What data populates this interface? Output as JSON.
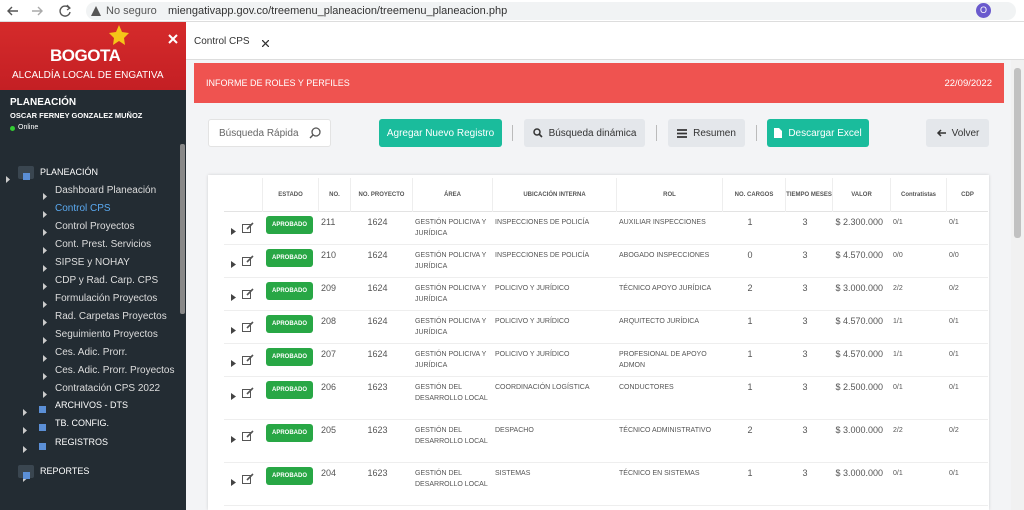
{
  "browser": {
    "security": "No seguro",
    "url": "miengativapp.gov.co/treemenu_planeacion/treemenu_planeacion.php",
    "profile": "O"
  },
  "sidebar": {
    "logo": "BOGOTA",
    "office": "ALCALDÍA LOCAL DE ENGATIVA",
    "section": "PLANEACIÓN",
    "user": "OSCAR FERNEY GONZALEZ MUÑOZ",
    "status": "Online",
    "menu": [
      {
        "label": "PLANEACIÓN",
        "children": [
          "Dashboard Planeación",
          "Control CPS",
          "Control Proyectos",
          "Cont. Prest. Servicios",
          "SIPSE y NOHAY",
          "CDP y Rad. Carp. CPS",
          "Formulación Proyectos",
          "Rad. Carpetas Proyectos",
          "Seguimiento Proyectos",
          "Ces. Adic. Prorr.",
          "Ces. Adic. Prorr. Proyectos",
          "Contratación CPS 2022"
        ]
      },
      {
        "label": "ARCHIVOS - DTS"
      },
      {
        "label": "TB. CONFIG."
      },
      {
        "label": "REGISTROS"
      },
      {
        "label": "REPORTES"
      }
    ]
  },
  "tab": "Control CPS",
  "header": {
    "title": "INFORME DE ROLES Y PERFILES",
    "date": "22/09/2022"
  },
  "toolbar": {
    "search_placeholder": "Búsqueda Rápida",
    "buttons": [
      "Agregar Nuevo Registro",
      "Búsqueda dinámica",
      "Resumen",
      "Descargar Excel",
      "Volver"
    ]
  },
  "table": {
    "columns": [
      "ESTADO",
      "NO.",
      "NO. PROYECTO",
      "ÁREA",
      "UBICACIÓN INTERNA",
      "ROL",
      "NO. CARGOS",
      "TIEMPO MESES",
      "VALOR",
      "Contratistas",
      "CDP"
    ],
    "rows": [
      [
        "APROBADO",
        "211",
        "1624",
        "GESTIÓN POLICIVA Y JURÍDICA",
        "INSPECCIONES DE POLICÍA",
        "AUXILIAR INSPECCIONES",
        "1",
        "3",
        "$ 2.300.000",
        "0/1",
        "0/1"
      ],
      [
        "APROBADO",
        "210",
        "1624",
        "GESTIÓN POLICIVA Y JURÍDICA",
        "INSPECCIONES DE POLICÍA",
        "ABOGADO INSPECCIONES",
        "0",
        "3",
        "$ 4.570.000",
        "0/0",
        "0/0"
      ],
      [
        "APROBADO",
        "209",
        "1624",
        "GESTIÓN POLICIVA Y JURÍDICA",
        "POLICIVO Y JURÍDICO",
        "TÉCNICO APOYO JURÍDICA",
        "2",
        "3",
        "$ 3.000.000",
        "2/2",
        "0/2"
      ],
      [
        "APROBADO",
        "208",
        "1624",
        "GESTIÓN POLICIVA Y JURÍDICA",
        "POLICIVO Y JURÍDICO",
        "ARQUITECTO JURÍDICA",
        "1",
        "3",
        "$ 4.570.000",
        "1/1",
        "0/1"
      ],
      [
        "APROBADO",
        "207",
        "1624",
        "GESTIÓN POLICIVA Y JURÍDICA",
        "POLICIVO Y JURÍDICO",
        "PROFESIONAL DE APOYO ADMON",
        "1",
        "3",
        "$ 4.570.000",
        "1/1",
        "0/1"
      ],
      [
        "APROBADO",
        "206",
        "1623",
        "GESTIÓN DEL DESARROLLO LOCAL",
        "COORDINACIÓN LOGÍSTICA",
        "CONDUCTORES",
        "1",
        "3",
        "$ 2.500.000",
        "0/1",
        "0/1"
      ],
      [
        "APROBADO",
        "205",
        "1623",
        "GESTIÓN DEL DESARROLLO LOCAL",
        "DESPACHO",
        "TÉCNICO ADMINISTRATIVO",
        "2",
        "3",
        "$ 3.000.000",
        "2/2",
        "0/2"
      ],
      [
        "APROBADO",
        "204",
        "1623",
        "GESTIÓN DEL DESARROLLO LOCAL",
        "SISTEMAS",
        "TÉCNICO EN SISTEMAS",
        "1",
        "3",
        "$ 3.000.000",
        "0/1",
        "0/1"
      ]
    ]
  }
}
